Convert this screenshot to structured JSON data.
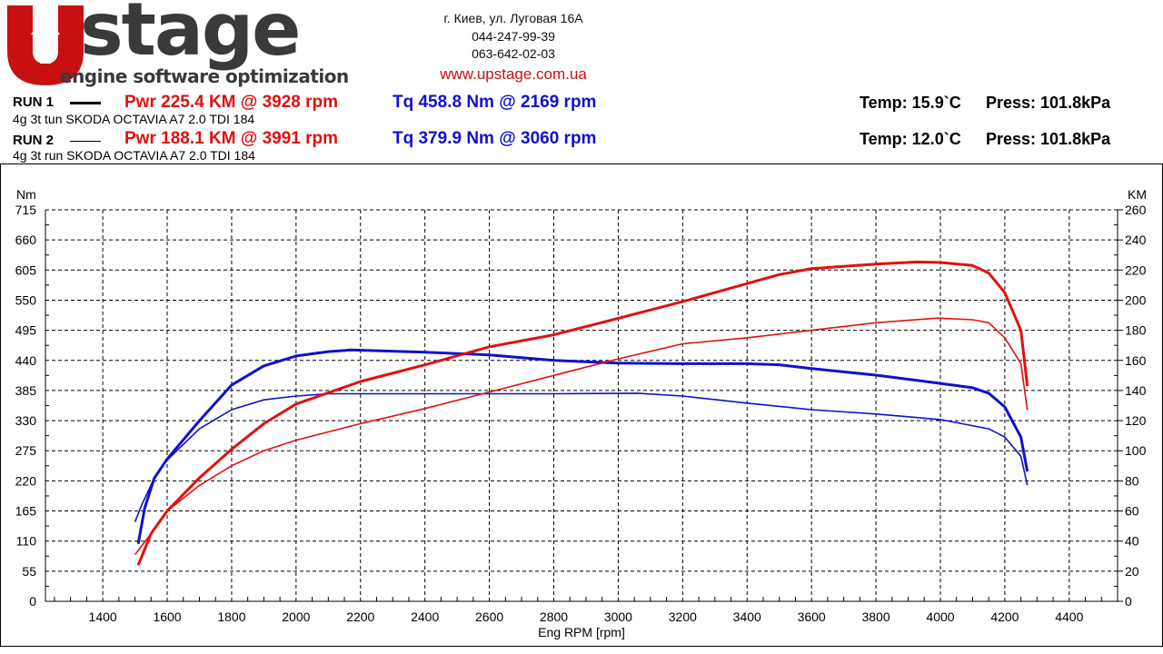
{
  "header": {
    "logo_text": "UPstage",
    "logo_tagline": "engine software optimization",
    "address": "г. Киев, ул. Луговая 16А",
    "phone1": "044-247-99-39",
    "phone2": "063-642-02-03",
    "website": "www.upstage.com.ua"
  },
  "runs": [
    {
      "label": "RUN 1",
      "pwr": "Pwr  225.4 KM @ 3928 rpm",
      "tq": "Tq 458.8 Nm @ 2169 rpm",
      "desc": "4g 3t tun SKODA OCTAVIA A7 2.0 TDI 184",
      "temp": "Temp: 15.9`C",
      "press": "Press: 101.8kPa"
    },
    {
      "label": "RUN 2",
      "pwr": "Pwr  188.1 KM @ 3991 rpm",
      "tq": "Tq 379.9 Nm @ 3060 rpm",
      "desc": "4g 3t run SKODA OCTAVIA A7 2.0 TDI 184",
      "temp": "Temp: 12.0`C",
      "press": "Press: 101.8kPa"
    }
  ],
  "colors": {
    "power": "#e01010",
    "torque": "#1010d0",
    "brand_red": "#c81010"
  },
  "chart_data": {
    "type": "line",
    "xlabel": "Eng RPM [rpm]",
    "ylabel_left": "Nm",
    "ylabel_right": "KM",
    "xlim": [
      1222,
      4550
    ],
    "ylim_left": [
      0,
      715
    ],
    "ylim_right": [
      0,
      260
    ],
    "xticks": [
      1400,
      1600,
      1800,
      2000,
      2200,
      2400,
      2600,
      2800,
      3000,
      3200,
      3400,
      3600,
      3800,
      4000,
      4200,
      4400
    ],
    "yticks_left": [
      0,
      55,
      110,
      165,
      220,
      275,
      330,
      385,
      440,
      495,
      550,
      605,
      660,
      715
    ],
    "yticks_right": [
      0,
      20,
      40,
      60,
      80,
      100,
      120,
      140,
      160,
      180,
      200,
      220,
      240,
      260
    ],
    "grid": true,
    "series": [
      {
        "run": "RUN 1",
        "quantity": "torque",
        "axis": "left",
        "color": "#1010d0",
        "weight": "thick",
        "x": [
          1510,
          1530,
          1560,
          1600,
          1700,
          1800,
          1900,
          2000,
          2100,
          2169,
          2400,
          2600,
          2800,
          3000,
          3200,
          3400,
          3500,
          3600,
          3800,
          4000,
          4100,
          4150,
          4200,
          4250,
          4270
        ],
        "y": [
          105,
          170,
          225,
          260,
          330,
          395,
          430,
          448,
          456,
          459,
          455,
          450,
          440,
          435,
          434,
          434,
          432,
          425,
          413,
          398,
          390,
          380,
          355,
          300,
          237
        ]
      },
      {
        "run": "RUN 2",
        "quantity": "torque",
        "axis": "left",
        "color": "#1010d0",
        "weight": "thin",
        "x": [
          1500,
          1520,
          1560,
          1600,
          1700,
          1800,
          1900,
          2000,
          2100,
          2400,
          2800,
          3060,
          3200,
          3400,
          3600,
          3800,
          4000,
          4150,
          4200,
          4250,
          4270
        ],
        "y": [
          145,
          175,
          225,
          258,
          315,
          350,
          368,
          375,
          379,
          379,
          379,
          380,
          375,
          362,
          350,
          342,
          332,
          315,
          300,
          265,
          212
        ]
      },
      {
        "run": "RUN 1",
        "quantity": "power",
        "axis": "right",
        "color": "#e01010",
        "weight": "thick",
        "x": [
          1510,
          1550,
          1600,
          1700,
          1800,
          1900,
          2000,
          2200,
          2400,
          2600,
          2800,
          3000,
          3200,
          3400,
          3500,
          3600,
          3800,
          3928,
          4000,
          4100,
          4150,
          4200,
          4250,
          4270
        ],
        "y": [
          24,
          45,
          60,
          82,
          101,
          118,
          131,
          146,
          157,
          169,
          177,
          188,
          199,
          211,
          217,
          221,
          224,
          225.4,
          225,
          223,
          218,
          205,
          180,
          143
        ]
      },
      {
        "run": "RUN 2",
        "quantity": "power",
        "axis": "right",
        "color": "#e01010",
        "weight": "thin",
        "x": [
          1500,
          1550,
          1600,
          1700,
          1800,
          1900,
          2000,
          2200,
          2400,
          2600,
          2800,
          3000,
          3200,
          3400,
          3600,
          3800,
          3991,
          4100,
          4150,
          4200,
          4250,
          4270
        ],
        "y": [
          31,
          45,
          60,
          77,
          90,
          100,
          107,
          118,
          128,
          139,
          150,
          161,
          171,
          175,
          180,
          185,
          188.1,
          187,
          185,
          175,
          158,
          127
        ]
      }
    ]
  }
}
